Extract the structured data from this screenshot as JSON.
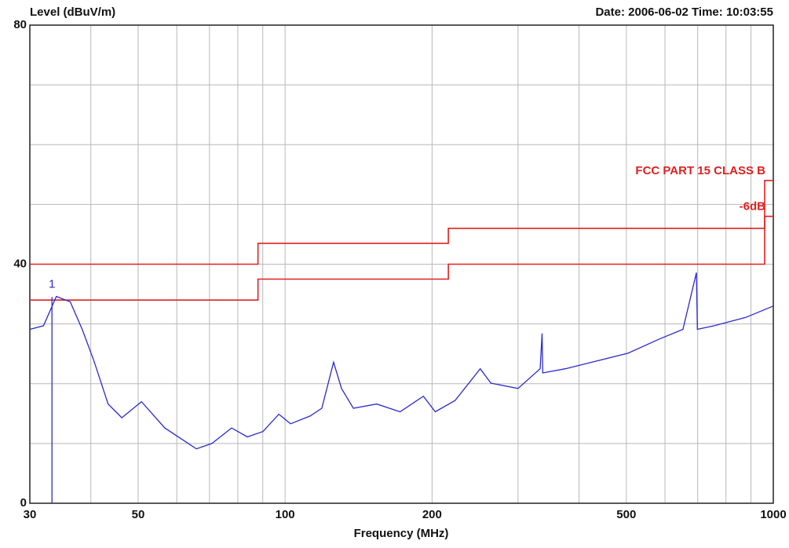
{
  "chart_data": {
    "type": "line",
    "y_label": "Level (dBuV/m)",
    "timestamp": "Date: 2006-06-02  Time: 10:03:55",
    "x_label": "Frequency (MHz)",
    "xscale": "log",
    "grid": true,
    "xlim": [
      30,
      1000
    ],
    "ylim": [
      0,
      80
    ],
    "xticks": [
      30,
      50,
      100,
      200,
      500,
      1000
    ],
    "yticks": [
      0,
      40,
      80
    ],
    "x_minor_grid": [
      40,
      60,
      70,
      80,
      90,
      300,
      400,
      600,
      700,
      800,
      900
    ],
    "y_minor_grid": [
      10,
      20,
      30,
      50,
      60,
      70
    ],
    "series": [
      {
        "color": "#2a2ad0",
        "x": [
          30,
          32,
          34,
          36.3,
          38.4,
          40.6,
          43.4,
          46.3,
          50.8,
          56.7,
          65.8,
          70.8,
          77.7,
          83.7,
          90.1,
          97.1,
          102.6,
          112.5,
          118.9,
          125.7,
          130.5,
          138,
          154,
          172,
          192,
          203,
          223,
          251,
          264,
          300,
          333,
          336,
          337,
          375,
          435,
          504,
          585,
          653,
          696,
          699,
          757,
          878,
          1000
        ],
        "values": [
          29.1,
          29.7,
          34.6,
          33.7,
          29.1,
          23.8,
          16.6,
          14.3,
          17,
          12.6,
          9.1,
          10,
          12.6,
          11.1,
          12,
          14.9,
          13.3,
          14.6,
          15.9,
          23.6,
          19.2,
          15.9,
          16.6,
          15.3,
          17.9,
          15.3,
          17.2,
          22.5,
          20.1,
          19.2,
          22.5,
          28.4,
          21.8,
          22.5,
          23.8,
          25.1,
          27.5,
          29.1,
          38.6,
          29.1,
          29.7,
          31.1,
          33
        ]
      }
    ],
    "limit_lines": [
      {
        "name": "FCC PART 15 CLASS B",
        "color": "#e02020",
        "x": [
          30,
          88,
          88,
          216,
          216,
          960,
          960,
          1000
        ],
        "values": [
          40,
          40,
          43.5,
          43.5,
          46,
          46,
          54,
          54
        ]
      },
      {
        "name": "-6dB",
        "color": "#e02020",
        "x": [
          30,
          88,
          88,
          216,
          216,
          960,
          960,
          1000
        ],
        "values": [
          34,
          34,
          37.5,
          37.5,
          40,
          40,
          48,
          48
        ]
      }
    ],
    "markers": [
      {
        "label": "1",
        "x": 33.3,
        "y": 34.5,
        "color": "#2a2ad0"
      }
    ]
  }
}
